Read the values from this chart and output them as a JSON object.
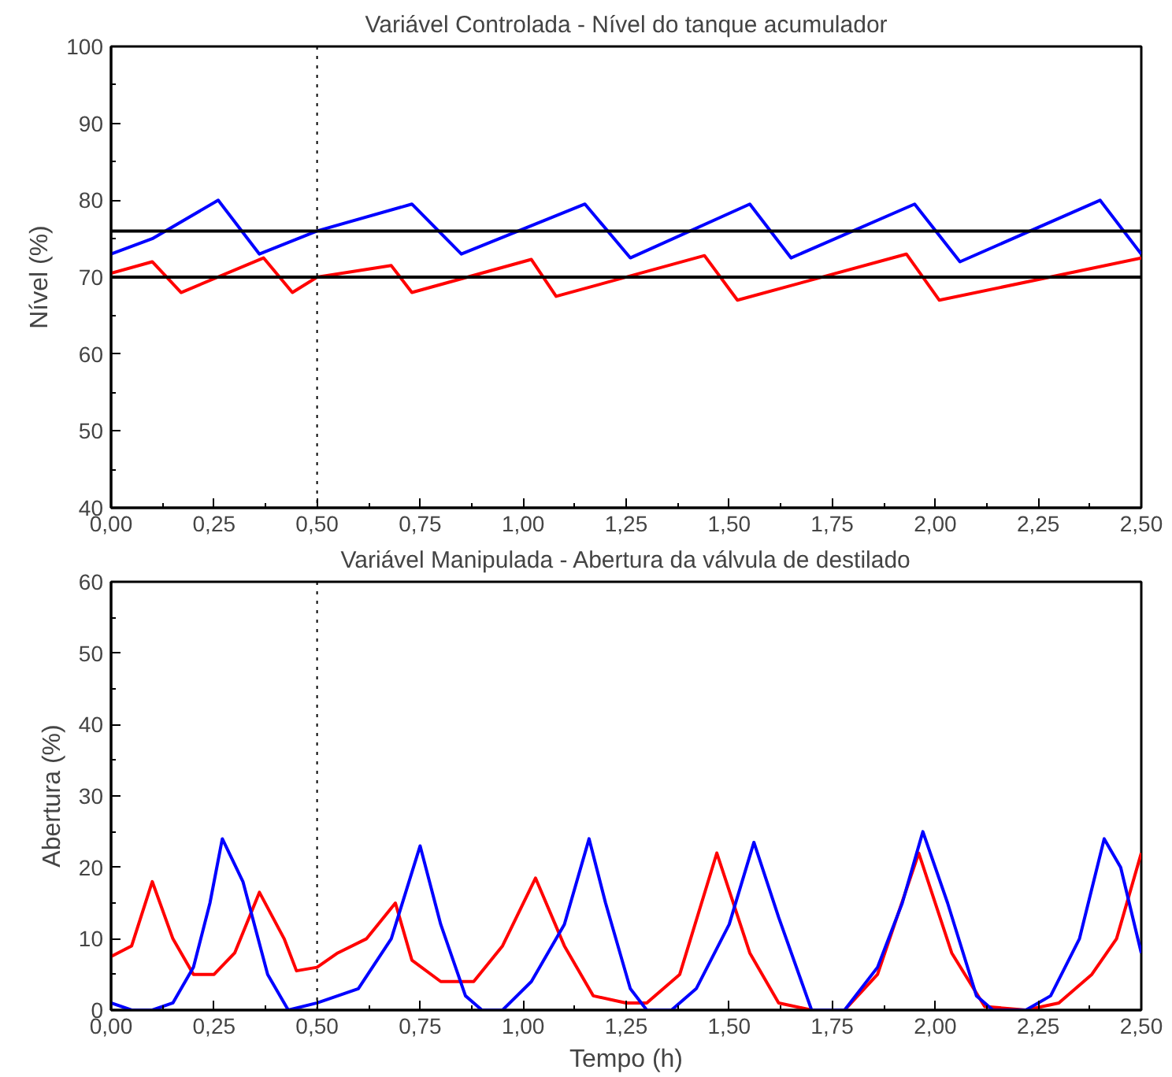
{
  "chart_data": [
    {
      "type": "line",
      "title": "Variável Controlada - Nível do tanque acumulador",
      "ylabel": "Nível (%)",
      "xlim": [
        0,
        2.5
      ],
      "ylim": [
        40,
        100
      ],
      "xticks": [
        {
          "value": 0,
          "label": "0,00"
        },
        {
          "value": 0.25,
          "label": "0,25"
        },
        {
          "value": 0.5,
          "label": "0,50"
        },
        {
          "value": 0.75,
          "label": "0,75"
        },
        {
          "value": 1,
          "label": "1,00"
        },
        {
          "value": 1.25,
          "label": "1,25"
        },
        {
          "value": 1.5,
          "label": "1,50"
        },
        {
          "value": 1.75,
          "label": "1,75"
        },
        {
          "value": 2,
          "label": "2,00"
        },
        {
          "value": 2.25,
          "label": "2,25"
        },
        {
          "value": 2.5,
          "label": "2,50"
        }
      ],
      "yticks": [
        40,
        50,
        60,
        70,
        80,
        90,
        100
      ],
      "grid": false,
      "ref_lines": [
        {
          "axis": "y",
          "value": 76,
          "color": "#000000",
          "line_style": "solid"
        },
        {
          "axis": "y",
          "value": 70,
          "color": "#000000",
          "line_style": "solid"
        },
        {
          "axis": "x",
          "value": 0.5,
          "color": "#000000",
          "line_style": "dotted"
        }
      ],
      "series": [
        {
          "color": "#0000ff",
          "x": [
            0,
            0.1,
            0.26,
            0.36,
            0.5,
            0.73,
            0.85,
            1.15,
            1.26,
            1.55,
            1.65,
            1.95,
            2.06,
            2.4,
            2.5
          ],
          "values": [
            73,
            75,
            80,
            73,
            76,
            79.5,
            73,
            79.5,
            72.5,
            79.5,
            72.5,
            79.5,
            72,
            80,
            73
          ]
        },
        {
          "color": "#ff0000",
          "x": [
            0,
            0.1,
            0.17,
            0.37,
            0.44,
            0.5,
            0.68,
            0.73,
            1.02,
            1.08,
            1.44,
            1.52,
            1.93,
            2.01,
            2.5
          ],
          "values": [
            70.5,
            72,
            68,
            72.5,
            68,
            70,
            71.5,
            68,
            72.3,
            67.5,
            72.8,
            67,
            73,
            67,
            72.5
          ]
        }
      ]
    },
    {
      "type": "line",
      "title": "Variável Manipulada - Abertura da válvula de destilado",
      "xlabel": "Tempo (h)",
      "ylabel": "Abertura (%)",
      "xlim": [
        0,
        2.5
      ],
      "ylim": [
        0,
        60
      ],
      "xticks": [
        {
          "value": 0,
          "label": "0,00"
        },
        {
          "value": 0.25,
          "label": "0,25"
        },
        {
          "value": 0.5,
          "label": "0,50"
        },
        {
          "value": 0.75,
          "label": "0,75"
        },
        {
          "value": 1,
          "label": "1,00"
        },
        {
          "value": 1.25,
          "label": "1,25"
        },
        {
          "value": 1.5,
          "label": "1,50"
        },
        {
          "value": 1.75,
          "label": "1,75"
        },
        {
          "value": 2,
          "label": "2,00"
        },
        {
          "value": 2.25,
          "label": "2,25"
        },
        {
          "value": 2.5,
          "label": "2,50"
        }
      ],
      "yticks": [
        0,
        10,
        20,
        30,
        40,
        50,
        60
      ],
      "grid": false,
      "ref_lines": [
        {
          "axis": "x",
          "value": 0.5,
          "color": "#000000",
          "line_style": "dotted"
        }
      ],
      "series": [
        {
          "color": "#ff0000",
          "x": [
            0,
            0.05,
            0.1,
            0.15,
            0.2,
            0.25,
            0.3,
            0.36,
            0.42,
            0.45,
            0.5,
            0.55,
            0.62,
            0.69,
            0.73,
            0.8,
            0.88,
            0.95,
            1.03,
            1.1,
            1.17,
            1.25,
            1.3,
            1.38,
            1.47,
            1.55,
            1.62,
            1.7,
            1.78,
            1.86,
            1.96,
            2.04,
            2.12,
            2.22,
            2.3,
            2.38,
            2.44,
            2.5
          ],
          "values": [
            7.5,
            9,
            18,
            10,
            5,
            5,
            8,
            16.5,
            10,
            5.5,
            6,
            8,
            10,
            15,
            7,
            4,
            4,
            9,
            18.5,
            9,
            2,
            1,
            1,
            5,
            22,
            8,
            1,
            0,
            0,
            5,
            22,
            8,
            0.5,
            0,
            1,
            5,
            10,
            22
          ]
        },
        {
          "color": "#0000ff",
          "x": [
            0,
            0.05,
            0.1,
            0.15,
            0.2,
            0.24,
            0.27,
            0.32,
            0.38,
            0.43,
            0.5,
            0.6,
            0.68,
            0.75,
            0.8,
            0.86,
            0.9,
            0.95,
            1.02,
            1.1,
            1.16,
            1.2,
            1.26,
            1.3,
            1.36,
            1.42,
            1.5,
            1.56,
            1.62,
            1.7,
            1.78,
            1.86,
            1.92,
            1.97,
            2.03,
            2.1,
            2.14,
            2.22,
            2.28,
            2.35,
            2.41,
            2.45,
            2.5
          ],
          "values": [
            1,
            0,
            0,
            1,
            6,
            15,
            24,
            18,
            5,
            0,
            1,
            3,
            10,
            23,
            12,
            2,
            0,
            0,
            4,
            12,
            24,
            15,
            3,
            0,
            0,
            3,
            12,
            23.5,
            13,
            0,
            0,
            6,
            15,
            25,
            15,
            2,
            0,
            0,
            2,
            10,
            24,
            20,
            8
          ]
        }
      ]
    }
  ]
}
